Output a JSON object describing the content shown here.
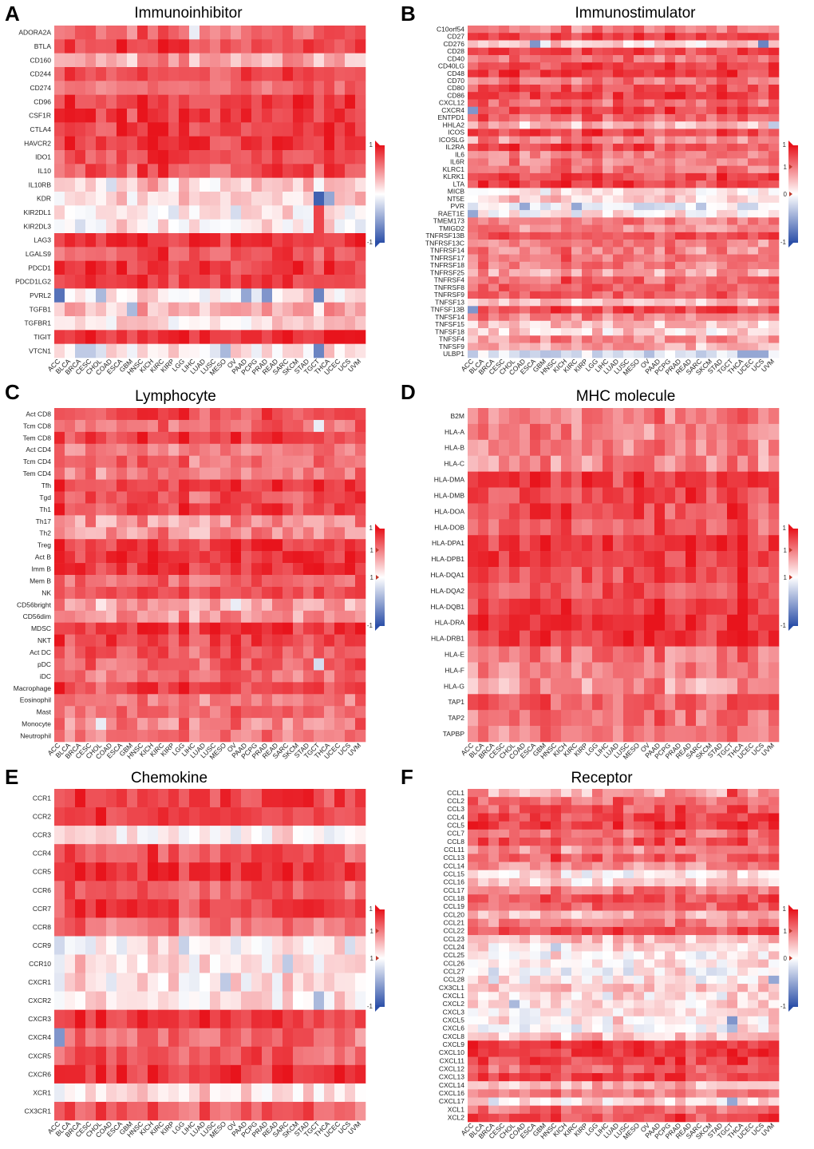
{
  "figure": {
    "colors": {
      "high": "#e8141c",
      "mid": "#ffffff",
      "low": "#2b4fa8"
    },
    "columns": [
      "ACC",
      "BLCA",
      "BRCA",
      "CESC",
      "CHOL",
      "COAD",
      "ESCA",
      "GBM",
      "HNSC",
      "KICH",
      "KIRC",
      "KIRP",
      "LGG",
      "LIHC",
      "LUAD",
      "LUSC",
      "MESO",
      "OV",
      "PAAD",
      "PCPG",
      "PRAD",
      "READ",
      "SARC",
      "SKCM",
      "STAD",
      "TGCT",
      "THCA",
      "UCEC",
      "UCS",
      "UVM"
    ]
  },
  "chart_data": [
    {
      "type": "heatmap",
      "letter": "A",
      "title": "Immunoinhibitor",
      "legend": {
        "max": "1",
        "min": "-1",
        "marks": [
          "1",
          "-1"
        ]
      },
      "rows": [
        "ADORA2A",
        "BTLA",
        "CD160",
        "CD244",
        "CD274",
        "CD96",
        "CSF1R",
        "CTLA4",
        "HAVCR2",
        "IDO1",
        "IL10",
        "IL10RB",
        "KDR",
        "KIR2DL1",
        "KIR2DL3",
        "LAG3",
        "LGALS9",
        "PDCD1",
        "PDCD1LG2",
        "PVRL2",
        "TGFB1",
        "TGFBR1",
        "TIGIT",
        "VTCN1"
      ],
      "row_means": [
        0.62,
        0.78,
        0.35,
        0.75,
        0.62,
        0.82,
        0.84,
        0.82,
        0.84,
        0.74,
        0.72,
        0.22,
        0.18,
        0.05,
        0.05,
        0.84,
        0.72,
        0.84,
        0.8,
        0.08,
        0.3,
        0.15,
        0.88,
        0.1
      ],
      "outliers": [
        [
          0,
          13,
          -0.1
        ],
        [
          11,
          5,
          -0.2
        ],
        [
          12,
          25,
          -0.9
        ],
        [
          12,
          26,
          -0.5
        ],
        [
          13,
          25,
          0.8
        ],
        [
          14,
          25,
          0.8
        ],
        [
          19,
          0,
          -0.8
        ],
        [
          19,
          4,
          -0.4
        ],
        [
          19,
          25,
          -0.7
        ],
        [
          19,
          20,
          -0.6
        ],
        [
          19,
          18,
          -0.5
        ],
        [
          20,
          7,
          -0.4
        ],
        [
          23,
          2,
          -0.3
        ],
        [
          23,
          3,
          -0.3
        ],
        [
          23,
          16,
          -0.4
        ],
        [
          23,
          25,
          -0.7
        ]
      ]
    },
    {
      "type": "heatmap",
      "letter": "B",
      "title": "Immunostimulator",
      "legend": {
        "max": "1",
        "min": "-1",
        "marks": [
          "1",
          "0",
          "-1"
        ]
      },
      "rows": [
        "C10orf54",
        "CD27",
        "CD276",
        "CD28",
        "CD40",
        "CD40LG",
        "CD48",
        "CD70",
        "CD80",
        "CD86",
        "CXCL12",
        "CXCR4",
        "ENTPD1",
        "HHLA2",
        "ICOS",
        "ICOSLG",
        "IL2RA",
        "IL6",
        "IL6R",
        "KLRC1",
        "KLRK1",
        "LTA",
        "MICB",
        "NT5E",
        "PVR",
        "RAET1E",
        "TMEM173",
        "TMIGD2",
        "TNFRSF13B",
        "TNFRSF13C",
        "TNFRSF14",
        "TNFRSF17",
        "TNFRSF18",
        "TNFRSF25",
        "TNFRSF4",
        "TNFRSF8",
        "TNFRSF9",
        "TNFSF13",
        "TNFSF13B",
        "TNFSF14",
        "TNFSF15",
        "TNFSF18",
        "TNFSF4",
        "TNFSF9",
        "ULBP1"
      ],
      "row_means": [
        0.55,
        0.82,
        0.2,
        0.8,
        0.6,
        0.78,
        0.85,
        0.6,
        0.75,
        0.82,
        0.65,
        0.78,
        0.7,
        0.3,
        0.82,
        0.5,
        0.78,
        0.55,
        0.55,
        0.6,
        0.82,
        0.8,
        0.1,
        0.25,
        -0.1,
        0.1,
        0.55,
        0.5,
        0.75,
        0.55,
        0.5,
        0.6,
        0.55,
        0.45,
        0.65,
        0.7,
        0.7,
        0.3,
        0.8,
        0.55,
        0.3,
        0.2,
        0.5,
        0.35,
        -0.2
      ],
      "outliers": [
        [
          2,
          6,
          -0.6
        ],
        [
          2,
          28,
          -0.7
        ],
        [
          11,
          0,
          -0.6
        ],
        [
          24,
          5,
          -0.5
        ],
        [
          24,
          10,
          -0.5
        ],
        [
          25,
          0,
          -0.5
        ],
        [
          38,
          0,
          -0.6
        ],
        [
          44,
          26,
          -0.5
        ],
        [
          44,
          27,
          -0.5
        ],
        [
          13,
          29,
          -0.3
        ]
      ]
    },
    {
      "type": "heatmap",
      "letter": "C",
      "title": "Lymphocyte",
      "legend": {
        "max": "1",
        "min": "-1",
        "marks": [
          "1",
          "1",
          "-1"
        ]
      },
      "rows": [
        "Act CD8",
        "Tcm CD8",
        "Tem CD8",
        "Act CD4",
        "Tcm CD4",
        "Tem CD4",
        "Tfh",
        "Tgd",
        "Th1",
        "Th17",
        "Th2",
        "Treg",
        "Act B",
        "Imm B",
        "Mem B",
        "NK",
        "CD56bright",
        "CD56dim",
        "MDSC",
        "NKT",
        "Act DC",
        "pDC",
        "iDC",
        "Macrophage",
        "Eosinophil",
        "Mast",
        "Monocyte",
        "Neutrophil"
      ],
      "row_means": [
        0.75,
        0.6,
        0.82,
        0.55,
        0.6,
        0.55,
        0.8,
        0.7,
        0.78,
        0.45,
        0.45,
        0.85,
        0.85,
        0.85,
        0.65,
        0.7,
        0.4,
        0.45,
        0.85,
        0.8,
        0.7,
        0.65,
        0.6,
        0.8,
        0.55,
        0.6,
        0.5,
        0.55
      ],
      "outliers": [
        [
          1,
          25,
          -0.1
        ],
        [
          16,
          17,
          -0.1
        ],
        [
          21,
          25,
          -0.2
        ],
        [
          26,
          4,
          -0.1
        ]
      ]
    },
    {
      "type": "heatmap",
      "letter": "D",
      "title": "MHC molecule",
      "legend": {
        "max": "1",
        "min": "-1",
        "marks": [
          "1",
          "1",
          "-1"
        ]
      },
      "rows": [
        "B2M",
        "HLA-A",
        "HLA-B",
        "HLA-C",
        "HLA-DMA",
        "HLA-DMB",
        "HLA-DOA",
        "HLA-DOB",
        "HLA-DPA1",
        "HLA-DPB1",
        "HLA-DQA1",
        "HLA-DQA2",
        "HLA-DQB1",
        "HLA-DRA",
        "HLA-DRB1",
        "HLA-E",
        "HLA-F",
        "HLA-G",
        "TAP1",
        "TAP2",
        "TAPBP"
      ],
      "row_means": [
        0.55,
        0.5,
        0.5,
        0.5,
        0.85,
        0.82,
        0.78,
        0.7,
        0.88,
        0.88,
        0.8,
        0.72,
        0.8,
        0.9,
        0.88,
        0.6,
        0.55,
        0.45,
        0.7,
        0.6,
        0.55
      ],
      "outliers": []
    },
    {
      "type": "heatmap",
      "letter": "E",
      "title": "Chemokine",
      "legend": {
        "max": "1",
        "min": "-1",
        "marks": [
          "1",
          "1",
          "-1"
        ]
      },
      "rows": [
        "CCR1",
        "CCR2",
        "CCR3",
        "CCR4",
        "CCR5",
        "CCR6",
        "CCR7",
        "CCR8",
        "CCR9",
        "CCR10",
        "CXCR1",
        "CXCR2",
        "CXCR3",
        "CXCR4",
        "CXCR5",
        "CXCR6",
        "XCR1",
        "CX3CR1"
      ],
      "row_means": [
        0.8,
        0.82,
        0.05,
        0.75,
        0.88,
        0.7,
        0.8,
        0.6,
        0.05,
        0.15,
        0.1,
        0.15,
        0.85,
        0.6,
        0.72,
        0.85,
        0.15,
        0.7
      ],
      "outliers": [
        [
          13,
          0,
          -0.6
        ],
        [
          10,
          16,
          -0.3
        ],
        [
          11,
          25,
          -0.4
        ],
        [
          9,
          22,
          -0.3
        ]
      ]
    },
    {
      "type": "heatmap",
      "letter": "F",
      "title": "Receptor",
      "legend": {
        "max": "1",
        "min": "-1",
        "marks": [
          "1",
          "0",
          "-1"
        ]
      },
      "rows": [
        "CCL1",
        "CCL2",
        "CCL3",
        "CCL4",
        "CCL5",
        "CCL7",
        "CCL8",
        "CCL11",
        "CCL13",
        "CCL14",
        "CCL15",
        "CCL16",
        "CCL17",
        "CCL18",
        "CCL19",
        "CCL20",
        "CCL21",
        "CCL22",
        "CCL23",
        "CCL24",
        "CCL25",
        "CCL26",
        "CCL27",
        "CCL28",
        "CX3CL1",
        "CXCL1",
        "CXCL2",
        "CXCL3",
        "CXCL5",
        "CXCL6",
        "CXCL8",
        "CXCL9",
        "CXCL10",
        "CXCL11",
        "CXCL12",
        "CXCL13",
        "CXCL14",
        "CXCL16",
        "CXCL17",
        "XCL1",
        "XCL2"
      ],
      "row_means": [
        0.4,
        0.65,
        0.7,
        0.78,
        0.85,
        0.6,
        0.75,
        0.45,
        0.7,
        0.45,
        0.1,
        0.2,
        0.55,
        0.75,
        0.7,
        0.3,
        0.55,
        0.75,
        0.3,
        0.1,
        0.05,
        0.1,
        0.05,
        0.1,
        0.3,
        0.1,
        0.15,
        0.1,
        0.1,
        0.05,
        0.25,
        0.85,
        0.82,
        0.8,
        0.6,
        0.8,
        0.3,
        0.55,
        0.1,
        0.6,
        0.75
      ],
      "outliers": [
        [
          0,
          25,
          0.9
        ],
        [
          23,
          29,
          -0.5
        ],
        [
          28,
          25,
          -0.6
        ],
        [
          29,
          25,
          -0.4
        ],
        [
          26,
          4,
          -0.4
        ],
        [
          38,
          25,
          -0.5
        ],
        [
          19,
          8,
          -0.3
        ]
      ]
    }
  ]
}
